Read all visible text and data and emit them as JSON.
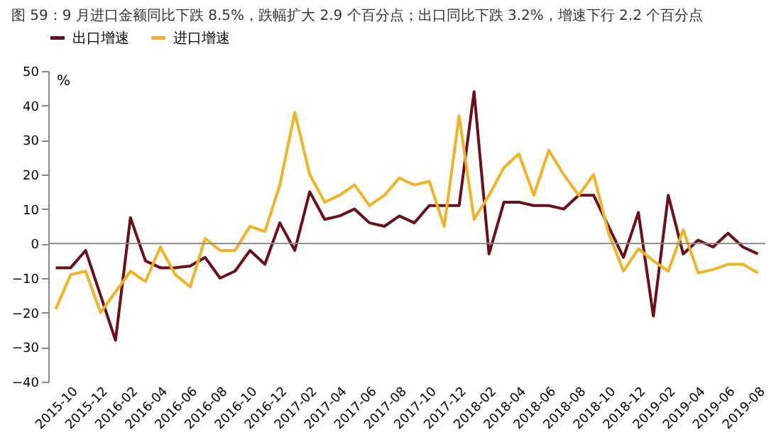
{
  "chart_data": {
    "type": "line",
    "title": "图 59：9 月进口金额同比下跌 8.5%，跌幅扩大 2.9 个百分点；出口同比下跌 3.2%，增速下行 2.2 个百分点",
    "ylabel": "%",
    "categories": [
      "2015-10",
      null,
      "2015-12",
      null,
      "2016-02",
      null,
      "2016-04",
      null,
      "2016-06",
      null,
      "2016-08",
      null,
      "2016-10",
      null,
      "2016-12",
      null,
      "2017-02",
      null,
      "2017-04",
      null,
      "2017-06",
      null,
      "2017-08",
      null,
      "2017-10",
      null,
      "2017-12",
      null,
      "2018-02",
      null,
      "2018-04",
      null,
      "2018-06",
      null,
      "2018-08",
      null,
      "2018-10",
      null,
      "2018-12",
      null,
      "2019-02",
      null,
      "2019-04",
      null,
      "2019-06",
      null,
      "2019-08",
      null
    ],
    "series": [
      {
        "name": "出口增速",
        "color": "#6b0f1a",
        "values": [
          -7,
          -7,
          -2,
          -15,
          -28,
          7.5,
          -5,
          -7,
          -7,
          -6.5,
          -4,
          -10,
          -8,
          -2,
          -6,
          6,
          -2,
          15,
          7,
          8,
          10,
          6,
          5,
          8,
          6,
          11,
          11,
          11,
          44,
          -3,
          12,
          12,
          11,
          11,
          10,
          14,
          14,
          5,
          -4,
          9,
          -21,
          14,
          -3,
          1,
          -1,
          3,
          -1,
          -3
        ]
      },
      {
        "name": "进口增速",
        "color": "#f0b323",
        "values": [
          -19,
          -9,
          -8,
          -20,
          -14,
          -8,
          -11,
          -1,
          -9,
          -12.5,
          1.5,
          -2,
          -2,
          5,
          3.5,
          17,
          38,
          20,
          12,
          14,
          17,
          11,
          14,
          19,
          17,
          18,
          5,
          37,
          7,
          14,
          22,
          26,
          14,
          27,
          20,
          14,
          20,
          3,
          -8,
          -1.5,
          -5,
          -8,
          4,
          -8.5,
          -7.5,
          -6,
          -6,
          -8.5
        ]
      }
    ],
    "ylim": [
      -40,
      50
    ],
    "yticks": [
      -40,
      -30,
      -20,
      -10,
      0,
      10,
      20,
      30,
      40,
      50
    ],
    "ref_lines": [
      {
        "axis": "y",
        "value": 0,
        "color": "#888888"
      }
    ],
    "legend": "top",
    "grid": false,
    "marker": "none",
    "line_style": "solid"
  }
}
